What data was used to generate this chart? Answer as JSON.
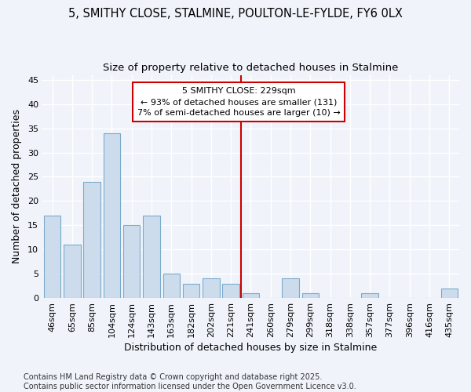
{
  "title1": "5, SMITHY CLOSE, STALMINE, POULTON-LE-FYLDE, FY6 0LX",
  "title2": "Size of property relative to detached houses in Stalmine",
  "xlabel": "Distribution of detached houses by size in Stalmine",
  "ylabel": "Number of detached properties",
  "categories": [
    "46sqm",
    "65sqm",
    "85sqm",
    "104sqm",
    "124sqm",
    "143sqm",
    "163sqm",
    "182sqm",
    "202sqm",
    "221sqm",
    "241sqm",
    "260sqm",
    "279sqm",
    "299sqm",
    "318sqm",
    "338sqm",
    "357sqm",
    "377sqm",
    "396sqm",
    "416sqm",
    "435sqm"
  ],
  "values": [
    17,
    11,
    24,
    34,
    15,
    17,
    5,
    3,
    4,
    3,
    1,
    0,
    4,
    1,
    0,
    0,
    1,
    0,
    0,
    0,
    2
  ],
  "bar_color": "#ccdcec",
  "bar_edge_color": "#7aaacb",
  "annotation_title": "5 SMITHY CLOSE: 229sqm",
  "annotation_line1": "← 93% of detached houses are smaller (131)",
  "annotation_line2": "7% of semi-detached houses are larger (10) →",
  "annotation_box_color": "#ffffff",
  "annotation_box_edge": "#cc0000",
  "vline_color": "#cc0000",
  "ylim": [
    0,
    46
  ],
  "yticks": [
    0,
    5,
    10,
    15,
    20,
    25,
    30,
    35,
    40,
    45
  ],
  "footer": "Contains HM Land Registry data © Crown copyright and database right 2025.\nContains public sector information licensed under the Open Government Licence v3.0.",
  "bg_color": "#f0f4fa",
  "plot_bg_color": "#f0f4fa",
  "grid_color": "#ffffff",
  "title1_fontsize": 10.5,
  "title2_fontsize": 9.5,
  "xlabel_fontsize": 9,
  "ylabel_fontsize": 9,
  "tick_fontsize": 8,
  "annotation_fontsize": 8,
  "footer_fontsize": 7
}
